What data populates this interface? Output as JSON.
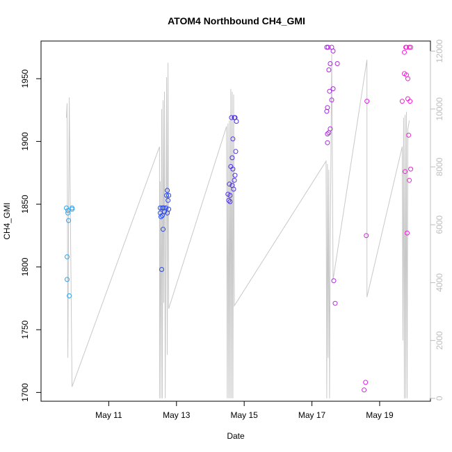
{
  "chart_data": {
    "type": "scatter",
    "title": "ATOM4 Northbound CH4_GMI",
    "xlabel": "Date",
    "ylabel": "CH4_GMI",
    "xlim": [
      "2018-05-09T00:00",
      "2018-05-20T12:00"
    ],
    "ylim": [
      1693,
      1980
    ],
    "y2lim": [
      -100,
      12350
    ],
    "x_ticks": [
      {
        "value": "2018-05-11",
        "label": "May 11"
      },
      {
        "value": "2018-05-13",
        "label": "May 13"
      },
      {
        "value": "2018-05-15",
        "label": "May 15"
      },
      {
        "value": "2018-05-17",
        "label": "May 17"
      },
      {
        "value": "2018-05-19",
        "label": "May 19"
      }
    ],
    "y_ticks": [
      1700,
      1750,
      1800,
      1850,
      1900,
      1950
    ],
    "y2_ticks": [
      0,
      2000,
      4000,
      6000,
      8000,
      10000,
      12000
    ],
    "grid": false,
    "point_color_scale": [
      "#29a8f0",
      "#2233ee",
      "#8a2be2",
      "#ff1ed8"
    ],
    "series": [
      {
        "kind": "points",
        "points": [
          [
            "2018-05-09T18:00",
            1847
          ],
          [
            "2018-05-09T18:30",
            1808
          ],
          [
            "2018-05-09T18:30",
            1790
          ],
          [
            "2018-05-09T19:00",
            1845
          ],
          [
            "2018-05-09T19:00",
            1843
          ],
          [
            "2018-05-09T19:30",
            1837
          ],
          [
            "2018-05-09T20:00",
            1777
          ],
          [
            "2018-05-09T22:00",
            1847
          ],
          [
            "2018-05-09T22:00",
            1846
          ],
          [
            "2018-05-12T12:30",
            1847
          ],
          [
            "2018-05-12T12:30",
            1843
          ],
          [
            "2018-05-12T13:00",
            1840
          ],
          [
            "2018-05-12T13:30",
            1798
          ],
          [
            "2018-05-12T14:00",
            1847
          ],
          [
            "2018-05-12T14:00",
            1841
          ],
          [
            "2018-05-12T14:30",
            1830
          ],
          [
            "2018-05-12T15:00",
            1847
          ],
          [
            "2018-05-12T15:30",
            1844
          ],
          [
            "2018-05-12T16:30",
            1847
          ],
          [
            "2018-05-12T17:00",
            1857
          ],
          [
            "2018-05-12T17:30",
            1861
          ],
          [
            "2018-05-12T17:30",
            1843
          ],
          [
            "2018-05-12T18:00",
            1853
          ],
          [
            "2018-05-12T18:30",
            1857
          ],
          [
            "2018-05-12T18:30",
            1846
          ],
          [
            "2018-05-14T12:30",
            1858
          ],
          [
            "2018-05-14T13:00",
            1853
          ],
          [
            "2018-05-14T13:30",
            1866
          ],
          [
            "2018-05-14T14:00",
            1852
          ],
          [
            "2018-05-14T14:00",
            1857
          ],
          [
            "2018-05-14T14:30",
            1880
          ],
          [
            "2018-05-14T15:00",
            1919
          ],
          [
            "2018-05-14T15:30",
            1887
          ],
          [
            "2018-05-14T15:30",
            1865
          ],
          [
            "2018-05-14T16:00",
            1902
          ],
          [
            "2018-05-14T16:00",
            1878
          ],
          [
            "2018-05-14T16:30",
            1862
          ],
          [
            "2018-05-14T17:00",
            1919
          ],
          [
            "2018-05-14T17:00",
            1869
          ],
          [
            "2018-05-14T17:30",
            1919
          ],
          [
            "2018-05-14T17:30",
            1873
          ],
          [
            "2018-05-14T18:00",
            1892
          ],
          [
            "2018-05-14T18:30",
            1916
          ],
          [
            "2018-05-17T10:30",
            1975
          ],
          [
            "2018-05-17T10:30",
            1924
          ],
          [
            "2018-05-17T11:00",
            1927
          ],
          [
            "2018-05-17T11:00",
            1906
          ],
          [
            "2018-05-17T11:00",
            1899
          ],
          [
            "2018-05-17T11:30",
            1975
          ],
          [
            "2018-05-17T12:00",
            1957
          ],
          [
            "2018-05-17T12:00",
            1907
          ],
          [
            "2018-05-17T12:30",
            1940
          ],
          [
            "2018-05-17T13:00",
            1962
          ],
          [
            "2018-05-17T13:00",
            1910
          ],
          [
            "2018-05-17T14:00",
            1975
          ],
          [
            "2018-05-17T14:00",
            1933
          ],
          [
            "2018-05-17T15:00",
            1942
          ],
          [
            "2018-05-17T15:00",
            1972
          ],
          [
            "2018-05-17T15:30",
            1789
          ],
          [
            "2018-05-17T16:30",
            1771
          ],
          [
            "2018-05-17T18:00",
            1962
          ],
          [
            "2018-05-18T13:00",
            1702
          ],
          [
            "2018-05-18T14:00",
            1708
          ],
          [
            "2018-05-18T14:30",
            1825
          ],
          [
            "2018-05-18T15:00",
            1932
          ],
          [
            "2018-05-19T16:00",
            1932
          ],
          [
            "2018-05-19T17:30",
            1954
          ],
          [
            "2018-05-19T17:30",
            1971
          ],
          [
            "2018-05-19T18:00",
            1876
          ],
          [
            "2018-05-19T18:30",
            1975
          ],
          [
            "2018-05-19T19:00",
            1953
          ],
          [
            "2018-05-19T19:00",
            1975
          ],
          [
            "2018-05-19T19:30",
            1827
          ],
          [
            "2018-05-19T20:00",
            1950
          ],
          [
            "2018-05-19T20:00",
            1934
          ],
          [
            "2018-05-19T20:30",
            1905
          ],
          [
            "2018-05-19T21:00",
            1975
          ],
          [
            "2018-05-19T21:00",
            1869
          ],
          [
            "2018-05-19T21:30",
            1932
          ],
          [
            "2018-05-19T22:00",
            1878
          ],
          [
            "2018-05-19T22:00",
            1975
          ]
        ]
      },
      {
        "kind": "line",
        "axis": "right",
        "color": "#c8c8c8",
        "points": [
          [
            "2018-05-09T18:00",
            9700
          ],
          [
            "2018-05-09T18:30",
            10200
          ],
          [
            "2018-05-09T19:00",
            1400
          ],
          [
            "2018-05-09T20:00",
            10400
          ],
          [
            "2018-05-09T22:00",
            400
          ],
          [
            "2018-05-12T12:00",
            8700
          ],
          [
            "2018-05-12T12:00",
            0
          ],
          [
            "2018-05-12T12:30",
            7500
          ],
          [
            "2018-05-12T13:00",
            0
          ],
          [
            "2018-05-12T13:30",
            10000
          ],
          [
            "2018-05-12T14:00",
            0
          ],
          [
            "2018-05-12T14:30",
            10300
          ],
          [
            "2018-05-12T15:00",
            3300
          ],
          [
            "2018-05-12T15:30",
            10600
          ],
          [
            "2018-05-12T16:00",
            0
          ],
          [
            "2018-05-12T17:00",
            11100
          ],
          [
            "2018-05-12T17:30",
            1500
          ],
          [
            "2018-05-12T18:00",
            11600
          ],
          [
            "2018-05-12T18:30",
            3100
          ],
          [
            "2018-05-14T11:30",
            9400
          ],
          [
            "2018-05-14T12:00",
            0
          ],
          [
            "2018-05-14T12:30",
            9500
          ],
          [
            "2018-05-14T13:00",
            0
          ],
          [
            "2018-05-14T13:30",
            9600
          ],
          [
            "2018-05-14T14:00",
            0
          ],
          [
            "2018-05-14T14:30",
            10700
          ],
          [
            "2018-05-14T15:00",
            0
          ],
          [
            "2018-05-14T15:30",
            10600
          ],
          [
            "2018-05-14T16:00",
            0
          ],
          [
            "2018-05-14T16:30",
            10500
          ],
          [
            "2018-05-14T17:00",
            3200
          ],
          [
            "2018-05-17T10:00",
            8200
          ],
          [
            "2018-05-17T10:30",
            0
          ],
          [
            "2018-05-17T11:00",
            8100
          ],
          [
            "2018-05-17T11:30",
            1400
          ],
          [
            "2018-05-17T12:00",
            7900
          ],
          [
            "2018-05-17T12:30",
            0
          ],
          [
            "2018-05-17T13:00",
            5100
          ],
          [
            "2018-05-17T14:00",
            11900
          ],
          [
            "2018-05-17T15:00",
            4100
          ],
          [
            "2018-05-18T15:00",
            11700
          ],
          [
            "2018-05-18T15:00",
            3500
          ],
          [
            "2018-05-19T16:00",
            8700
          ],
          [
            "2018-05-19T16:30",
            2000
          ],
          [
            "2018-05-19T17:00",
            9700
          ],
          [
            "2018-05-19T17:30",
            0
          ],
          [
            "2018-05-19T18:00",
            9800
          ],
          [
            "2018-05-19T18:30",
            0
          ],
          [
            "2018-05-19T19:00",
            9900
          ],
          [
            "2018-05-19T19:30",
            0
          ],
          [
            "2018-05-19T20:00",
            9300
          ],
          [
            "2018-05-19T21:00",
            9600
          ]
        ]
      }
    ]
  }
}
